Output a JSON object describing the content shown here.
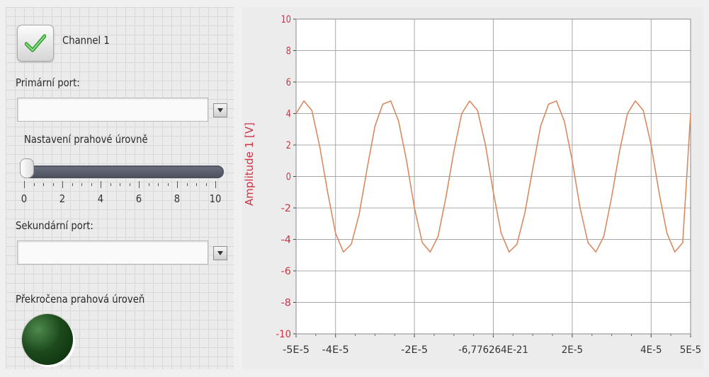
{
  "channel": {
    "label": "Channel 1",
    "checked": true
  },
  "primary_port": {
    "label": "Primární port:",
    "value": ""
  },
  "threshold": {
    "label": "Nastavení prahové úrovně",
    "value": 0,
    "min": 0,
    "max": 10,
    "scale_labels": [
      "0",
      "2",
      "4",
      "6",
      "8",
      "10"
    ]
  },
  "secondary_port": {
    "label": "Sekundární port:",
    "value": ""
  },
  "indicator": {
    "label": "Překročena prahová úroveň",
    "lit": false
  },
  "colors": {
    "trace": "#d88a60",
    "axis_text": "#cc3344",
    "grid": "#a8a8a8",
    "led": "#1d4a1d",
    "slider": "#5c5f6e"
  },
  "chart_data": {
    "type": "line",
    "ylabel": "Amplitude 1 [V]",
    "xlim": [
      -5e-05,
      5e-05
    ],
    "ylim": [
      -10,
      10
    ],
    "grid": true,
    "x_tick_values": [
      -5e-05,
      -4e-05,
      -2e-05,
      0,
      2e-05,
      4e-05,
      5e-05
    ],
    "x_tick_labels": [
      "-5E-5",
      "-4E-5",
      "-2E-5",
      "-6,776264E-21",
      "2E-5",
      "4E-5",
      "5E-5"
    ],
    "y_tick_values": [
      10,
      8,
      6,
      4,
      2,
      0,
      -2,
      -4,
      -6,
      -8,
      -10
    ],
    "y_tick_labels": [
      "10",
      "8",
      "6",
      "4",
      "2",
      "0",
      "-2",
      "-4",
      "-6",
      "-8",
      "-10"
    ],
    "series": [
      {
        "x": [
          -5e-05,
          -4.8e-05,
          -4.6e-05,
          -4.4e-05,
          -4.2e-05,
          -4e-05,
          -3.8e-05,
          -3.6e-05,
          -3.4e-05,
          -3.2e-05,
          -3e-05,
          -2.8e-05,
          -2.6e-05,
          -2.4e-05,
          -2.2e-05,
          -2e-05,
          -1.8e-05,
          -1.6e-05,
          -1.4e-05,
          -1.2e-05,
          -1e-05,
          -8e-06,
          -6e-06,
          -4e-06,
          -2e-06,
          0,
          2e-06,
          4e-06,
          6e-06,
          8e-06,
          1e-05,
          1.2e-05,
          1.4e-05,
          1.6e-05,
          1.8e-05,
          2e-05,
          2.2e-05,
          2.4e-05,
          2.6e-05,
          2.8e-05,
          3e-05,
          3.2e-05,
          3.4e-05,
          3.6e-05,
          3.8e-05,
          4e-05,
          4.2e-05,
          4.4e-05,
          4.6e-05,
          4.8e-05,
          5e-05
        ],
        "y": [
          4.0,
          4.8,
          4.2,
          1.9,
          -1.0,
          -3.6,
          -4.8,
          -4.3,
          -2.4,
          0.5,
          3.2,
          4.6,
          4.8,
          3.5,
          1.0,
          -2.0,
          -4.2,
          -4.8,
          -3.8,
          -1.3,
          1.6,
          4.0,
          4.8,
          4.2,
          2.0,
          -1.0,
          -3.6,
          -4.8,
          -4.3,
          -2.3,
          0.5,
          3.2,
          4.6,
          4.8,
          3.5,
          1.0,
          -2.0,
          -4.2,
          -4.8,
          -3.8,
          -1.3,
          1.6,
          4.0,
          4.8,
          4.2,
          2.0,
          -1.0,
          -3.6,
          -4.8,
          -4.2,
          4.0
        ]
      }
    ]
  }
}
